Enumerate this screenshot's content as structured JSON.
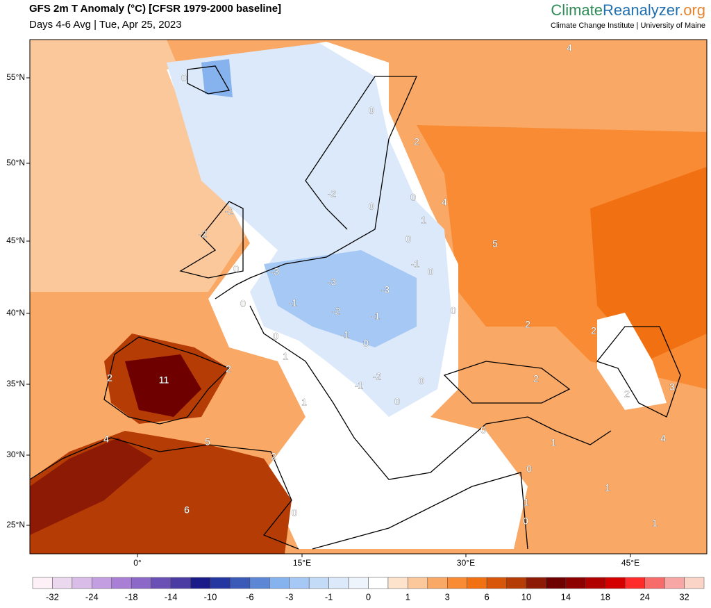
{
  "header": {
    "title": "GFS 2m T Anomaly (°C) [CFSR 1979-2000 baseline]",
    "subtitle": "Days 4-6 Avg | Tue, Apr 25, 2023"
  },
  "brand": {
    "name_parts": [
      "Climate",
      "Reanalyzer",
      ".org"
    ],
    "colors": [
      "#2e8b57",
      "#1f6fb0",
      "#e8842c"
    ],
    "affiliation": "Climate Change Institute | University of Maine"
  },
  "map": {
    "lat_labels": [
      "55°N",
      "50°N",
      "45°N",
      "40°N",
      "35°N",
      "30°N",
      "25°N"
    ],
    "lon_labels": [
      "0°",
      "15°E",
      "30°E",
      "45°E"
    ],
    "contour_labels": [
      0,
      4,
      0,
      2,
      -2,
      0,
      0,
      4,
      1,
      -2,
      -2,
      0,
      5,
      -1,
      0,
      0,
      -3,
      -3,
      -3,
      0,
      -1,
      -2,
      -1,
      0,
      2,
      2,
      0,
      -1,
      0,
      1,
      2,
      2,
      11,
      -1,
      -2,
      0,
      2,
      3,
      2,
      1,
      0,
      0,
      4,
      5,
      1,
      4,
      2,
      0,
      1,
      6,
      0,
      1,
      0,
      1
    ]
  },
  "colorbar": {
    "labels": [
      -32,
      -24,
      -18,
      -14,
      -10,
      -6,
      -3,
      -1,
      0,
      1,
      3,
      6,
      10,
      14,
      18,
      24,
      32
    ],
    "colors": [
      "#fdf0f6",
      "#ecd8ee",
      "#d9bde8",
      "#c39ee0",
      "#a97fd6",
      "#8c68c8",
      "#6a4fb5",
      "#4b3ca4",
      "#1a1a88",
      "#2437a0",
      "#3b5ab8",
      "#5d87d4",
      "#86b2ee",
      "#a6c8f4",
      "#c4dbf7",
      "#dbe9fa",
      "#eef4fc",
      "#ffffff",
      "#fde3cb",
      "#fbc89b",
      "#f9a865",
      "#f88b34",
      "#f07012",
      "#d8560a",
      "#b63c06",
      "#8c1a04",
      "#6e0000",
      "#8c0000",
      "#b00000",
      "#d40000",
      "#ff2a2a",
      "#f86b6b",
      "#f8a5a5",
      "#fbd4c8"
    ]
  }
}
